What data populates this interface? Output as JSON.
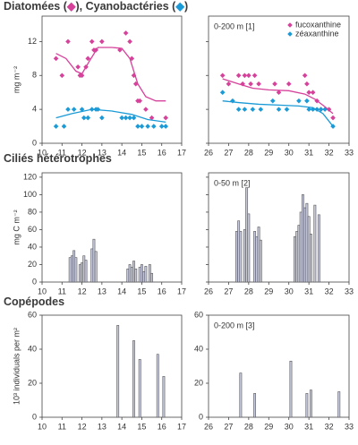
{
  "chart_data": [
    {
      "type": "scatter",
      "title": [
        {
          "text": "Diatomées ("
        },
        {
          "text": "◆",
          "color": "#d6419a"
        },
        {
          "text": "), Cyanobactéries ("
        },
        {
          "text": "◆",
          "color": "#1a9ad6"
        },
        {
          "text": ")"
        }
      ],
      "ylabel": "mg m⁻²",
      "xlim": [
        10,
        17
      ],
      "xticks": [
        10,
        11,
        12,
        13,
        14,
        15,
        16,
        17
      ],
      "ylim": [
        0,
        15
      ],
      "yticks": [
        0,
        4,
        8,
        12
      ],
      "series": [
        {
          "color": "#d6419a",
          "x": [
            10.7,
            11.0,
            11.3,
            11.8,
            11.9,
            12.0,
            12.2,
            12.3,
            12.5,
            12.6,
            12.7,
            13.0,
            13.9,
            14.2,
            14.4,
            14.5,
            14.6,
            14.7,
            14.8,
            14.9,
            15.2,
            15.5,
            16.2
          ],
          "values": [
            10,
            8,
            12,
            9,
            8,
            8,
            9,
            10,
            12,
            11,
            11,
            12,
            11,
            13,
            12,
            10,
            8,
            7,
            5,
            5,
            4,
            3,
            3
          ]
        },
        {
          "color": "#1a9ad6",
          "x": [
            10.7,
            11.1,
            11.3,
            11.6,
            12.0,
            12.1,
            12.3,
            12.5,
            12.7,
            12.8,
            13.0,
            14.0,
            14.2,
            14.4,
            14.6,
            14.8,
            15.0,
            15.3,
            15.6,
            16.0,
            16.2
          ],
          "values": [
            2,
            2,
            4,
            4,
            4,
            3,
            3,
            4,
            4,
            4,
            3,
            3,
            3,
            3,
            3,
            2,
            2,
            2,
            2,
            2,
            2
          ]
        },
        {
          "style": "line",
          "color": "#d6419a",
          "x": [
            10.7,
            11.2,
            11.7,
            12.0,
            12.4,
            12.8,
            13.5,
            14.0,
            14.4,
            14.8,
            15.2,
            15.7,
            16.2
          ],
          "values": [
            10.6,
            10,
            8.5,
            8.2,
            9.8,
            11.3,
            11.3,
            11.2,
            10,
            7,
            5.5,
            5,
            5
          ]
        },
        {
          "style": "line",
          "color": "#1a9ad6",
          "x": [
            10.7,
            11.5,
            12.5,
            13.5,
            14.5,
            15.3,
            16.2
          ],
          "values": [
            3,
            3.5,
            4,
            3.8,
            3.4,
            2.8,
            2.5
          ]
        }
      ]
    },
    {
      "type": "scatter",
      "annotation": "0-200 m [1]",
      "legend": "upper right",
      "show_ytick_labels": false,
      "xlim": [
        26,
        33
      ],
      "xticks": [
        26,
        27,
        28,
        29,
        30,
        31,
        32,
        33
      ],
      "ylim": [
        0,
        15
      ],
      "yticks": [
        0,
        4,
        8,
        12
      ],
      "series": [
        {
          "name": "fucoxanthine",
          "color": "#d6419a",
          "x": [
            26.7,
            27.0,
            27.5,
            27.7,
            27.8,
            28.0,
            28.1,
            28.3,
            28.5,
            29.3,
            29.5,
            30.0,
            30.8,
            30.9,
            31.0,
            31.2,
            31.4,
            31.6,
            32.0,
            32.2
          ],
          "values": [
            8,
            7,
            8,
            7,
            8,
            8,
            7,
            8,
            7,
            7,
            6,
            7,
            8,
            7,
            6,
            6,
            5,
            4,
            4,
            3
          ]
        },
        {
          "name": "zéaxanthine",
          "color": "#1a9ad6",
          "x": [
            26.7,
            27.2,
            27.5,
            27.8,
            28.2,
            28.6,
            29.2,
            29.5,
            29.9,
            30.5,
            30.9,
            31.0,
            31.2,
            31.4,
            31.6,
            31.8,
            32.2
          ],
          "values": [
            6,
            5,
            4,
            4,
            4,
            4,
            5,
            4,
            4,
            5,
            5,
            4,
            4,
            4,
            4,
            4,
            2
          ]
        },
        {
          "style": "line",
          "color": "#d6419a",
          "x": [
            26.7,
            27.5,
            28.2,
            29,
            30,
            30.8,
            31.3,
            31.8,
            32.2
          ],
          "values": [
            7.6,
            7,
            6.5,
            6.3,
            6.2,
            5.8,
            5.2,
            4.3,
            3.5
          ]
        },
        {
          "style": "line",
          "color": "#1a9ad6",
          "x": [
            26.7,
            27.5,
            28.5,
            29.5,
            30.5,
            31.2,
            31.7,
            32.2
          ],
          "values": [
            5,
            4.8,
            4.6,
            4.5,
            4.4,
            4.2,
            3.5,
            2
          ]
        }
      ]
    },
    {
      "type": "bar",
      "title": [
        {
          "text": "Ciliés hétérotrophes"
        }
      ],
      "ylabel": "mg C m⁻²",
      "color": "#c8cbdf",
      "xlim": [
        10,
        17
      ],
      "xticks": [
        10,
        11,
        12,
        13,
        14,
        15,
        16,
        17
      ],
      "ylim": [
        0,
        125
      ],
      "yticks": [
        0,
        20,
        40,
        60,
        80,
        100,
        120
      ],
      "x": [
        11.4,
        11.5,
        11.6,
        11.7,
        11.9,
        12.0,
        12.1,
        12.2,
        12.5,
        12.6,
        12.7,
        14.3,
        14.4,
        14.5,
        14.6,
        14.7,
        14.9,
        15.0,
        15.1,
        15.2,
        15.4,
        15.5
      ],
      "values": [
        28,
        30,
        36,
        28,
        20,
        22,
        30,
        25,
        38,
        49,
        35,
        15,
        20,
        17,
        24,
        15,
        17,
        20,
        12,
        18,
        20,
        10
      ]
    },
    {
      "type": "bar",
      "annotation": "0-50 m [2]",
      "show_ytick_labels": false,
      "color": "#c8cbdf",
      "xlim": [
        26,
        33
      ],
      "xticks": [
        26,
        27,
        28,
        29,
        30,
        31,
        32,
        33
      ],
      "ylim": [
        0,
        125
      ],
      "yticks": [
        0,
        20,
        40,
        60,
        80,
        100,
        120
      ],
      "x": [
        27.4,
        27.5,
        27.6,
        27.8,
        27.9,
        28.0,
        28.3,
        28.4,
        28.5,
        28.6,
        30.3,
        30.4,
        30.5,
        30.6,
        30.7,
        30.8,
        30.9,
        31.0,
        31.1,
        31.3,
        31.5
      ],
      "values": [
        58,
        70,
        58,
        60,
        108,
        78,
        58,
        52,
        63,
        48,
        52,
        58,
        65,
        80,
        100,
        85,
        90,
        75,
        55,
        88,
        77
      ]
    },
    {
      "type": "bar",
      "title": [
        {
          "text": "Copépodes"
        }
      ],
      "ylabel": "10³ individuals per m²",
      "color": "#c8cbdf",
      "xlim": [
        10,
        17
      ],
      "xticks": [
        10,
        11,
        12,
        13,
        14,
        15,
        16,
        17
      ],
      "ylim": [
        0,
        60
      ],
      "yticks": [
        0,
        20,
        40,
        60
      ],
      "x": [
        13.8,
        14.6,
        14.9,
        15.8,
        16.1
      ],
      "values": [
        54,
        45,
        34,
        37,
        24
      ]
    },
    {
      "type": "bar",
      "annotation": "0-200 m [3]",
      "color": "#c8cbdf",
      "xlim": [
        26,
        33
      ],
      "xticks": [
        26,
        27,
        28,
        29,
        30,
        31,
        32,
        33
      ],
      "ylim": [
        0,
        60
      ],
      "yticks": [
        0,
        20,
        40,
        60
      ],
      "x": [
        27.6,
        28.3,
        30.1,
        30.9,
        31.1,
        32.5
      ],
      "values": [
        26,
        14,
        33,
        14,
        16,
        15
      ]
    }
  ]
}
